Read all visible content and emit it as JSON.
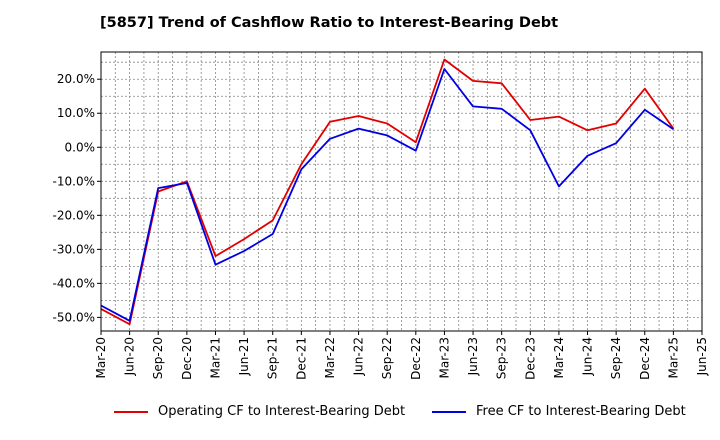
{
  "chart_data": {
    "type": "line",
    "title": "[5857]  Trend of Cashflow Ratio to Interest-Bearing Debt",
    "xlabel": "",
    "ylabel": "",
    "ylim": [
      -54,
      28
    ],
    "y_ticks": [
      -50,
      -40,
      -30,
      -20,
      -10,
      0,
      10,
      20
    ],
    "y_tick_labels": [
      "-50.0%",
      "-40.0%",
      "-30.0%",
      "-20.0%",
      "-10.0%",
      "0.0%",
      "10.0%",
      "20.0%"
    ],
    "x_tick_labels": [
      "Mar-20",
      "Jun-20",
      "Sep-20",
      "Dec-20",
      "Mar-21",
      "Jun-21",
      "Sep-21",
      "Dec-21",
      "Mar-22",
      "Jun-22",
      "Sep-22",
      "Dec-22",
      "Mar-23",
      "Jun-23",
      "Sep-23",
      "Dec-23",
      "Mar-24",
      "Jun-24",
      "Sep-24",
      "Dec-24",
      "Mar-25",
      "Jun-25"
    ],
    "x": [
      "Mar-20",
      "Jun-20",
      "Sep-20",
      "Dec-20",
      "Mar-21",
      "Jun-21",
      "Sep-21",
      "Dec-21",
      "Mar-22",
      "Jun-22",
      "Sep-22",
      "Dec-22",
      "Mar-23",
      "Jun-23",
      "Sep-23",
      "Dec-23",
      "Mar-24",
      "Jun-24",
      "Sep-24",
      "Dec-24",
      "Mar-25"
    ],
    "grid": true,
    "legend_position": "bottom",
    "series": [
      {
        "name": "Operating CF to Interest-Bearing Debt",
        "color": "#e00000",
        "values": [
          -47.5,
          -52,
          -13,
          -10,
          -32,
          -27,
          -21.5,
          -5,
          7.5,
          9.2,
          7,
          1.5,
          25.8,
          19.5,
          18.8,
          8,
          9,
          5,
          7,
          17.2,
          5.5
        ]
      },
      {
        "name": "Free CF to Interest-Bearing Debt",
        "color": "#0000e0",
        "values": [
          -46.5,
          -51,
          -12,
          -10.5,
          -34.5,
          -30.5,
          -25.5,
          -6.5,
          2.5,
          5.5,
          3.5,
          -1,
          23,
          12,
          11.3,
          5,
          -11.5,
          -2.5,
          1.2,
          11,
          5.3
        ]
      }
    ]
  }
}
